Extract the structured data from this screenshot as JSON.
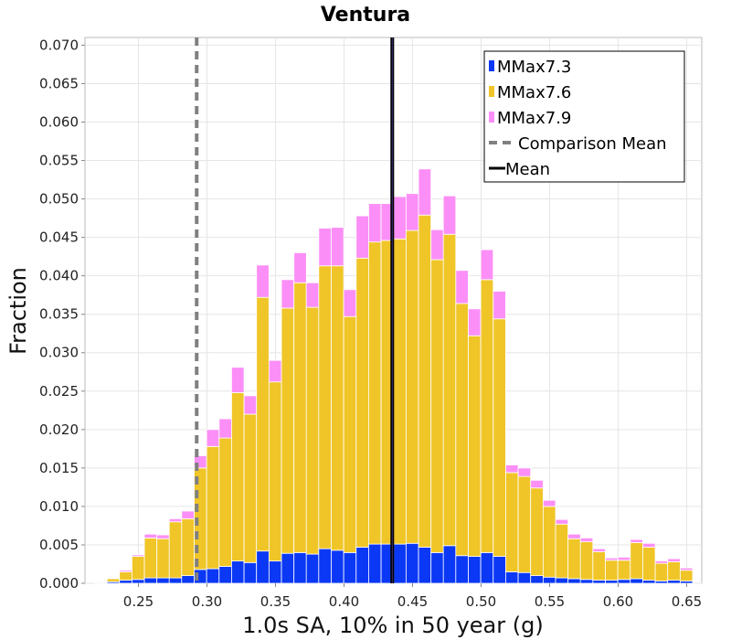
{
  "chart_data": {
    "type": "bar",
    "title": "Ventura",
    "xlabel": "1.0s SA, 10% in 50 year (g)",
    "ylabel": "Fraction",
    "xlim": [
      0.211,
      0.661
    ],
    "ylim": [
      0,
      0.071
    ],
    "xticks": [
      "0.25",
      "0.30",
      "0.35",
      "0.40",
      "0.45",
      "0.50",
      "0.55",
      "0.60",
      "0.65"
    ],
    "yticks": [
      "0.000",
      "0.005",
      "0.010",
      "0.015",
      "0.020",
      "0.025",
      "0.030",
      "0.035",
      "0.040",
      "0.045",
      "0.050",
      "0.055",
      "0.060",
      "0.065",
      "0.070"
    ],
    "grid": true,
    "bin_width": 0.00909,
    "legend_position": "top-right",
    "x": [
      0.2225,
      0.2316,
      0.2407,
      0.2498,
      0.2589,
      0.268,
      0.277,
      0.2861,
      0.2952,
      0.3043,
      0.3134,
      0.3225,
      0.3316,
      0.3407,
      0.3498,
      0.3589,
      0.368,
      0.377,
      0.3861,
      0.3952,
      0.4043,
      0.4134,
      0.4225,
      0.4316,
      0.4407,
      0.4498,
      0.4589,
      0.468,
      0.477,
      0.4861,
      0.4952,
      0.5043,
      0.5134,
      0.5225,
      0.5316,
      0.5407,
      0.5498,
      0.5589,
      0.568,
      0.577,
      0.5861,
      0.5952,
      0.6043,
      0.6134,
      0.6225,
      0.6316,
      0.6407,
      0.6498
    ],
    "series": [
      {
        "name": "MMax7.3",
        "color": "#0a38f5",
        "values": [
          0.0001,
          0.0002,
          0.0004,
          0.0005,
          0.0007,
          0.0007,
          0.0007,
          0.001,
          0.0018,
          0.0019,
          0.0022,
          0.0029,
          0.0027,
          0.0042,
          0.0029,
          0.0039,
          0.004,
          0.0038,
          0.0045,
          0.0043,
          0.004,
          0.0047,
          0.0051,
          0.0051,
          0.0051,
          0.0052,
          0.0047,
          0.004,
          0.0049,
          0.0036,
          0.0035,
          0.004,
          0.0035,
          0.0015,
          0.0014,
          0.001,
          0.0008,
          0.0007,
          0.0006,
          0.0005,
          0.0004,
          0.0004,
          0.0005,
          0.0006,
          0.0004,
          0.0003,
          0.0004,
          0.0003
        ]
      },
      {
        "name": "MMax7.6",
        "color": "#f0c528",
        "values": [
          0.0001,
          0.0004,
          0.0011,
          0.003,
          0.0052,
          0.0051,
          0.0073,
          0.0074,
          0.0132,
          0.0159,
          0.0167,
          0.0219,
          0.0193,
          0.033,
          0.0233,
          0.0319,
          0.0351,
          0.0321,
          0.0368,
          0.037,
          0.0307,
          0.0376,
          0.0393,
          0.0395,
          0.0397,
          0.0407,
          0.0432,
          0.0381,
          0.0405,
          0.0328,
          0.0287,
          0.0355,
          0.0309,
          0.0129,
          0.0125,
          0.0114,
          0.0092,
          0.007,
          0.0052,
          0.0049,
          0.0037,
          0.0026,
          0.0025,
          0.0047,
          0.0043,
          0.0023,
          0.0024,
          0.0014
        ]
      },
      {
        "name": "MMax7.9",
        "color": "#fb8ff7",
        "values": [
          0.0,
          0.0,
          0.0002,
          0.0002,
          0.0005,
          0.0005,
          0.0004,
          0.001,
          0.0016,
          0.0022,
          0.0025,
          0.0033,
          0.0024,
          0.0042,
          0.0028,
          0.0037,
          0.0039,
          0.0032,
          0.0049,
          0.005,
          0.0035,
          0.0055,
          0.005,
          0.0048,
          0.0055,
          0.0048,
          0.006,
          0.0039,
          0.005,
          0.0043,
          0.0035,
          0.0039,
          0.0036,
          0.001,
          0.0011,
          0.001,
          0.0008,
          0.0006,
          0.0006,
          0.0005,
          0.0004,
          0.0003,
          0.0004,
          0.0004,
          0.0005,
          0.0003,
          0.0004,
          0.0003
        ]
      }
    ],
    "lines": [
      {
        "name": "Comparison Mean",
        "x": 0.2925,
        "color": "#808080",
        "style": "dashed"
      },
      {
        "name": "Mean",
        "x": 0.4352,
        "color": "#000000",
        "style": "solid"
      }
    ]
  }
}
